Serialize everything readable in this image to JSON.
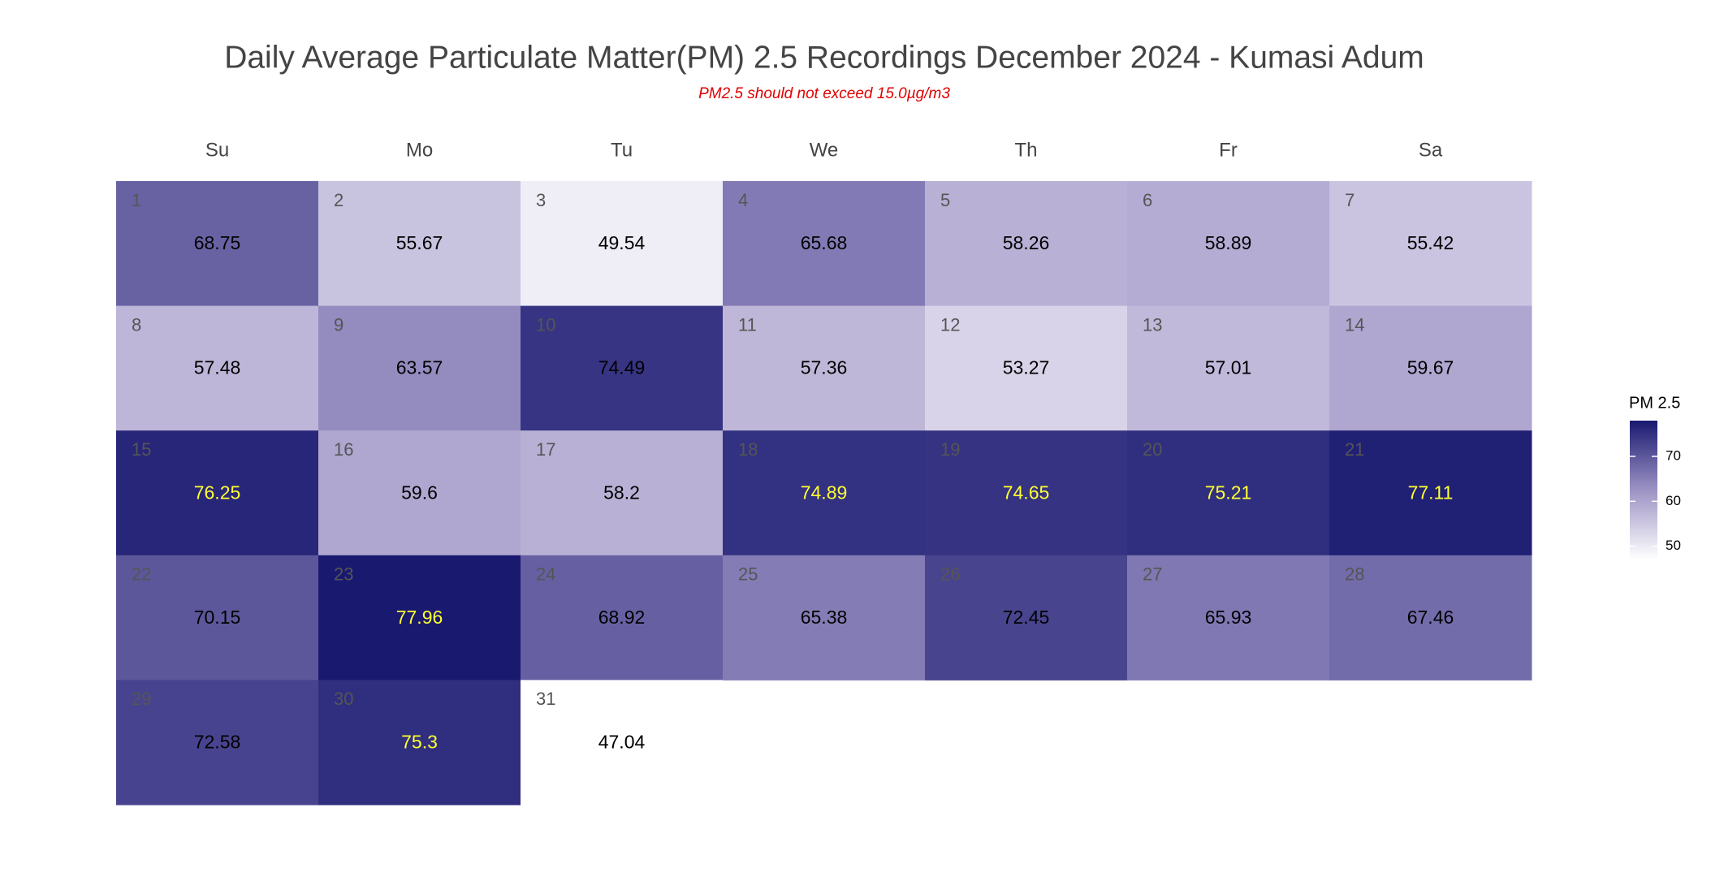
{
  "chart_data": {
    "type": "calendar_heatmap",
    "title": "Daily Average Particulate Matter(PM) 2.5 Recordings December 2024 -  Kumasi Adum",
    "subtitle": "PM2.5 should not exceed 15.0µg/m3",
    "weekdays": [
      "Su",
      "Mo",
      "Tu",
      "We",
      "Th",
      "Fr",
      "Sa"
    ],
    "days": [
      1,
      2,
      3,
      4,
      5,
      6,
      7,
      8,
      9,
      10,
      11,
      12,
      13,
      14,
      15,
      16,
      17,
      18,
      19,
      20,
      21,
      22,
      23,
      24,
      25,
      26,
      27,
      28,
      29,
      30,
      31
    ],
    "values": [
      68.75,
      55.67,
      49.54,
      65.68,
      58.26,
      58.89,
      55.42,
      57.48,
      63.57,
      74.49,
      57.36,
      53.27,
      57.01,
      59.67,
      76.25,
      59.6,
      58.2,
      74.89,
      74.65,
      75.21,
      77.11,
      70.15,
      77.96,
      68.92,
      65.38,
      72.45,
      65.93,
      67.46,
      72.58,
      75.3,
      47.04
    ],
    "value_label_colors": [
      "#000000",
      "#000000",
      "#000000",
      "#000000",
      "#000000",
      "#000000",
      "#000000",
      "#000000",
      "#000000",
      "#000000",
      "#000000",
      "#000000",
      "#000000",
      "#000000",
      "#ffff33",
      "#000000",
      "#000000",
      "#ffff33",
      "#ffff33",
      "#ffff33",
      "#ffff33",
      "#000000",
      "#ffff33",
      "#000000",
      "#000000",
      "#000000",
      "#000000",
      "#000000",
      "#000000",
      "#ffff33",
      "#000000"
    ],
    "colors": [
      "#ffffff",
      "#9d93c5",
      "#191970"
    ],
    "clim": [
      47.04,
      77.96
    ],
    "legend_title": "PM 2.5",
    "colorbar_ticks": [
      50,
      60,
      70
    ]
  }
}
